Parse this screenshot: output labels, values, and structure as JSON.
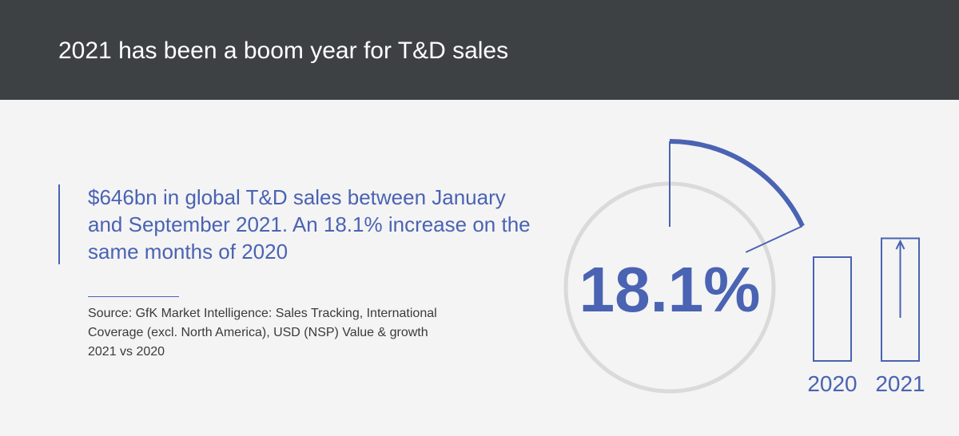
{
  "header": {
    "title": "2021 has been a boom year for T&D sales"
  },
  "headline": {
    "text": "$646bn in global T&D sales between January and September 2021. An 18.1% increase on the same months of 2020"
  },
  "source": {
    "text": "Source: GfK Market Intelligence: Sales Tracking, International Coverage (excl. North America), USD (NSP) Value & growth 2021 vs 2020"
  },
  "colors": {
    "header_bg": "#3d4144",
    "accent": "#4a63b2",
    "ring": "#dadada",
    "background": "#f4f4f5"
  },
  "chart_data": [
    {
      "type": "pie",
      "label": "18.1%",
      "value_percent": 18.1,
      "icon": "growth-ring"
    },
    {
      "type": "bar",
      "categories": [
        "2020",
        "2021"
      ],
      "values": [
        100,
        118.1
      ],
      "annotation": "up-arrow-icon"
    }
  ]
}
